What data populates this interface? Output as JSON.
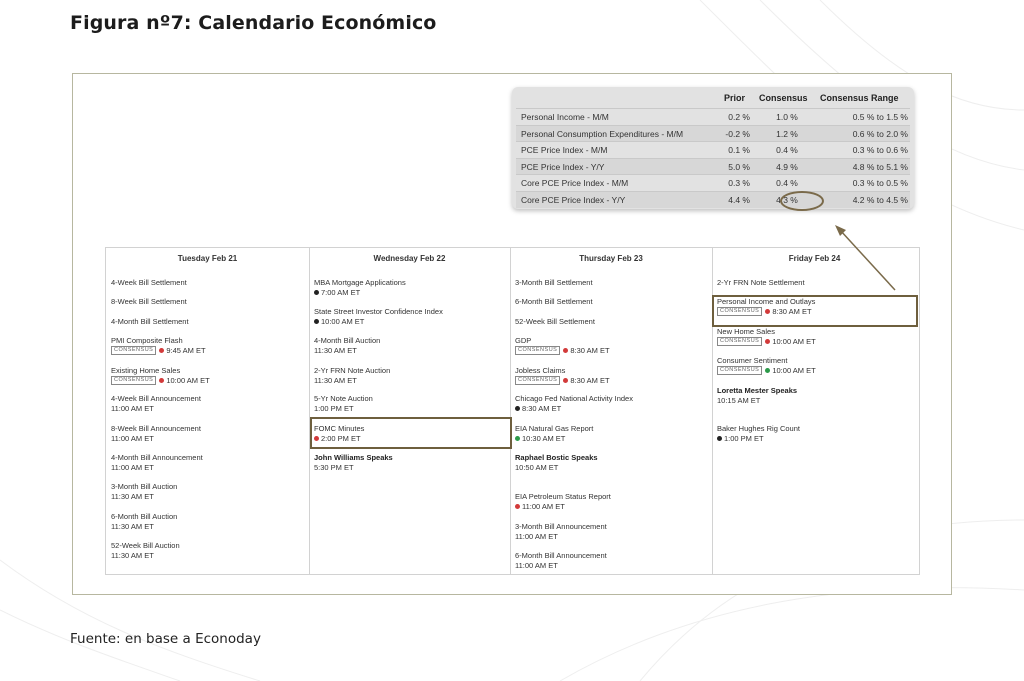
{
  "title": "Figura nº7: Calendario Económico",
  "source": "Fuente: en base a Econoday",
  "consensus_table": {
    "headers": {
      "prior": "Prior",
      "consensus": "Consensus",
      "range": "Consensus Range"
    },
    "rows": [
      {
        "name": "Personal Income - M/M",
        "prior": "0.2 %",
        "consensus": "1.0 %",
        "range": "0.5 % to 1.5 %"
      },
      {
        "name": "Personal Consumption Expenditures - M/M",
        "prior": "-0.2 %",
        "consensus": "1.2 %",
        "range": "0.6 % to 2.0 %"
      },
      {
        "name": "PCE Price Index - M/M",
        "prior": "0.1 %",
        "consensus": "0.4 %",
        "range": "0.3 % to 0.6 %"
      },
      {
        "name": "PCE Price Index - Y/Y",
        "prior": "5.0 %",
        "consensus": "4.9 %",
        "range": "4.8 % to 5.1 %"
      },
      {
        "name": "Core PCE Price Index - M/M",
        "prior": "0.3 %",
        "consensus": "0.4 %",
        "range": "0.3 % to 0.5 %"
      },
      {
        "name": "Core PCE Price Index - Y/Y",
        "prior": "4.4 %",
        "consensus": "4.3 %",
        "range": "4.2 % to 4.5 %"
      }
    ]
  },
  "badge_label": "CONSENSUS",
  "calendar": [
    {
      "day": "Tuesday Feb 21",
      "events": [
        {
          "name": "4-Week Bill Settlement"
        },
        {
          "name": "8-Week Bill Settlement"
        },
        {
          "name": "4-Month Bill Settlement"
        },
        {
          "name": "PMI Composite Flash",
          "badge": true,
          "dot": "red",
          "time": "9:45 AM ET"
        },
        {
          "name": "Existing Home Sales",
          "badge": true,
          "dot": "red",
          "time": "10:00 AM ET"
        },
        {
          "name": "4-Week Bill Announcement",
          "time": "11:00 AM ET"
        },
        {
          "name": "8-Week Bill Announcement",
          "time": "11:00 AM ET"
        },
        {
          "name": "4-Month Bill Announcement",
          "time": "11:00 AM ET"
        },
        {
          "name": "3-Month Bill Auction",
          "time": "11:30 AM ET"
        },
        {
          "name": "6-Month Bill Auction",
          "time": "11:30 AM ET"
        },
        {
          "name": "52-Week Bill Auction",
          "time": "11:30 AM ET"
        }
      ]
    },
    {
      "day": "Wednesday Feb 22",
      "events": [
        {
          "name": "MBA Mortgage Applications",
          "dot": "black",
          "time": "7:00 AM ET"
        },
        {
          "name": "State Street Investor Confidence Index",
          "dot": "black",
          "time": "10:00 AM ET"
        },
        {
          "name": "4-Month Bill Auction",
          "time": "11:30 AM ET"
        },
        {
          "name": "2-Yr FRN Note Auction",
          "time": "11:30 AM ET"
        },
        {
          "name": "5-Yr Note Auction",
          "time": "1:00 PM ET"
        },
        {
          "name": "FOMC Minutes",
          "dot": "red",
          "time": "2:00 PM ET"
        },
        {
          "name": "John Williams Speaks",
          "bold": true,
          "time": "5:30 PM ET"
        }
      ]
    },
    {
      "day": "Thursday Feb 23",
      "events": [
        {
          "name": "3-Month Bill Settlement"
        },
        {
          "name": "6-Month Bill Settlement"
        },
        {
          "name": "52-Week Bill Settlement"
        },
        {
          "name": "GDP",
          "badge": true,
          "dot": "red",
          "time": "8:30 AM ET"
        },
        {
          "name": "Jobless Claims",
          "badge": true,
          "dot": "red",
          "time": "8:30 AM ET"
        },
        {
          "name": "Chicago Fed National Activity Index",
          "dot": "black",
          "time": "8:30 AM ET"
        },
        {
          "name": "EIA Natural Gas Report",
          "dot": "green",
          "time": "10:30 AM ET"
        },
        {
          "name": "Raphael Bostic Speaks",
          "bold": true,
          "time": "10:50 AM ET"
        },
        {
          "name": "EIA Petroleum Status Report",
          "dot": "red",
          "time": "11:00 AM ET"
        },
        {
          "name": "3-Month Bill Announcement",
          "time": "11:00 AM ET"
        },
        {
          "name": "6-Month Bill Announcement",
          "time": "11:00 AM ET"
        }
      ]
    },
    {
      "day": "Friday Feb 24",
      "events": [
        {
          "name": "2-Yr FRN Note Settlement"
        },
        {
          "name": "Personal Income and Outlays",
          "badge": true,
          "dot": "red",
          "time": "8:30 AM ET"
        },
        {
          "name": "New Home Sales",
          "badge": true,
          "dot": "red",
          "time": "10:00 AM ET"
        },
        {
          "name": "Consumer Sentiment",
          "badge": true,
          "dot": "green",
          "time": "10:00 AM ET"
        },
        {
          "name": "Loretta Mester Speaks",
          "bold": true,
          "time": "10:15 AM ET"
        },
        {
          "name": "Baker Hughes Rig Count",
          "dot": "black",
          "time": "1:00 PM ET"
        }
      ]
    }
  ]
}
